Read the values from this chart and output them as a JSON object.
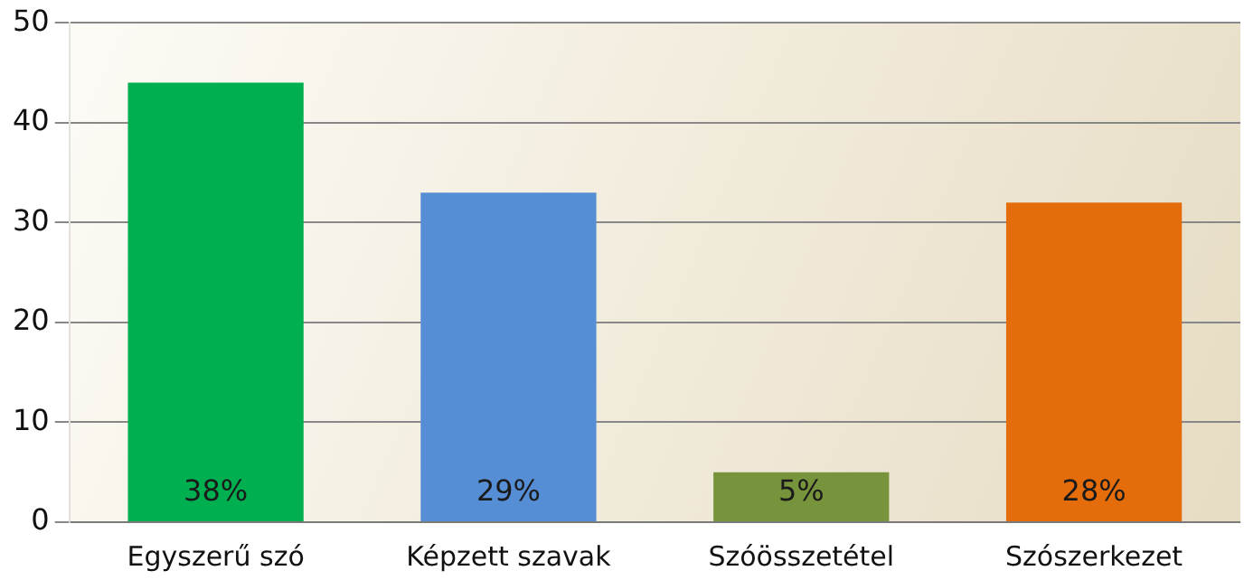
{
  "chart_data": {
    "type": "bar",
    "categories": [
      "Egyszerű szó",
      "Képzett szavak",
      "Szóösszetétel",
      "Szószerkezet"
    ],
    "values": [
      44,
      33,
      5,
      32
    ],
    "colors": [
      "#00b050",
      "#558ed5",
      "#77933c",
      "#e46c0a"
    ],
    "annotations": [
      "38%",
      "29%",
      "5%",
      "28%"
    ],
    "ylim": [
      0,
      50
    ],
    "yticks": [
      0,
      10,
      20,
      30,
      40,
      50
    ],
    "grid": "y",
    "legend": false
  }
}
